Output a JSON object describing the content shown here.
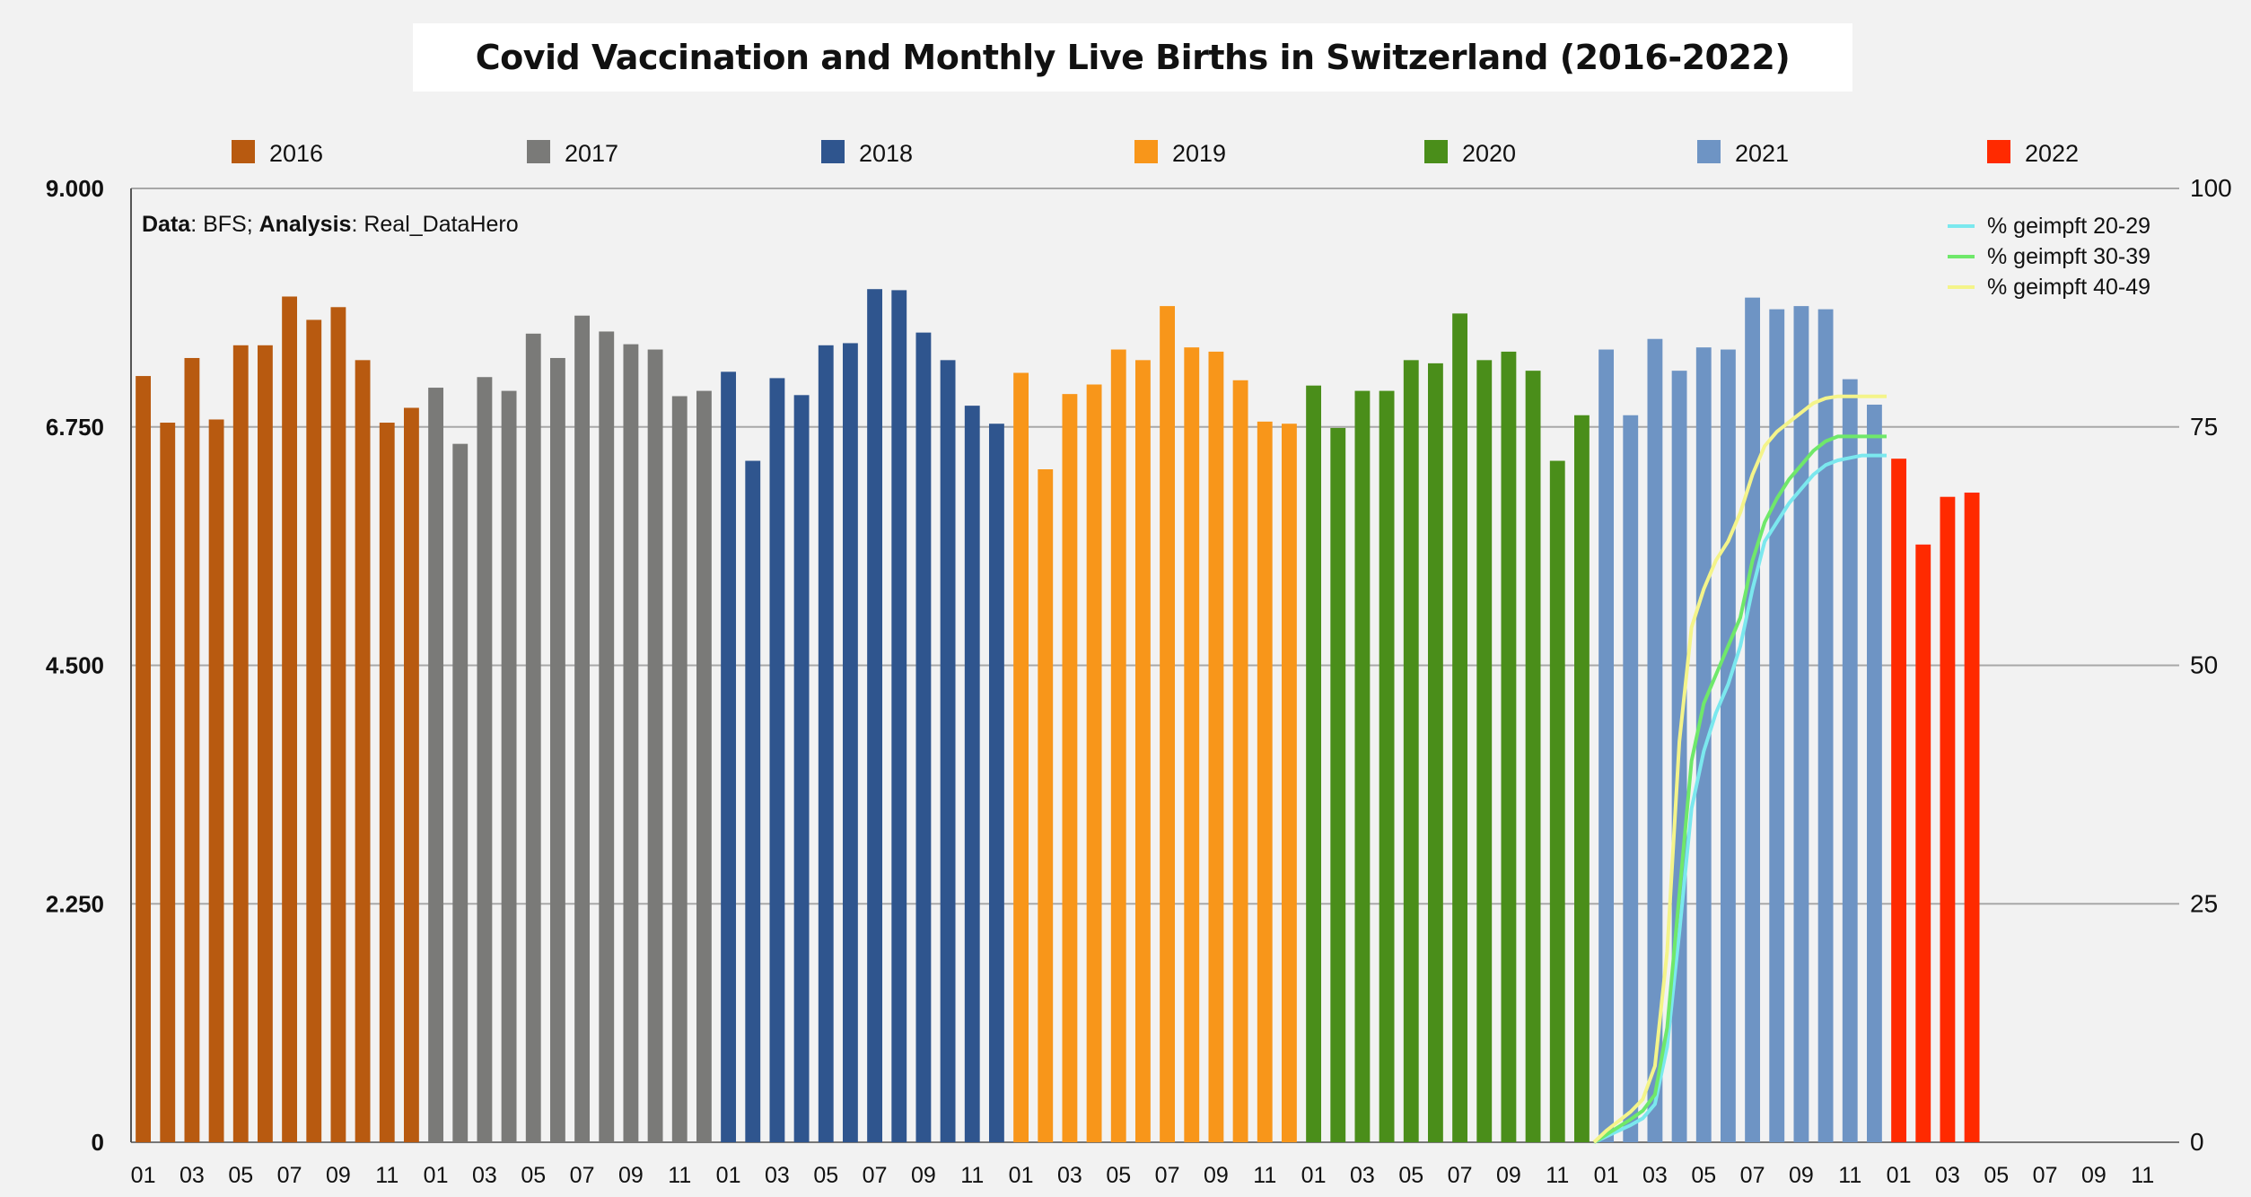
{
  "chart_data": {
    "type": "bar",
    "title": "Covid Vaccination and Monthly Live Births in Switzerland (2016-2022)",
    "source_note": {
      "data_label": "Data",
      "data_value": ": BFS; ",
      "analysis_label": "Analysis",
      "analysis_value": ": Real_DataHero"
    },
    "y_left": {
      "ylim": [
        0,
        9000
      ],
      "ticks": [
        0,
        2250,
        4500,
        6750,
        9000
      ],
      "tick_labels": [
        "0",
        "2.250",
        "4.500",
        "6.750",
        "9.000"
      ]
    },
    "y_right": {
      "ylim": [
        0,
        100
      ],
      "ticks": [
        0,
        25,
        50,
        75,
        100
      ],
      "tick_labels": [
        "0",
        "25",
        "50",
        "75",
        "100"
      ]
    },
    "grid": true,
    "x_tick_labels": [
      "01",
      "03",
      "05",
      "07",
      "09",
      "11"
    ],
    "x_axis_months": 84,
    "legend_position": "top",
    "bar_series": [
      {
        "name": "2016",
        "color": "#b85a10",
        "values": [
          7230,
          6790,
          7400,
          6820,
          7520,
          7520,
          7980,
          7760,
          7880,
          7380,
          6790,
          6930
        ]
      },
      {
        "name": "2017",
        "color": "#7a7a78",
        "values": [
          7120,
          6590,
          7220,
          7090,
          7630,
          7400,
          7800,
          7650,
          7530,
          7480,
          7040,
          7090
        ]
      },
      {
        "name": "2018",
        "color": "#2f558e",
        "values": [
          7270,
          6430,
          7210,
          7050,
          7520,
          7540,
          8050,
          8040,
          7640,
          7380,
          6950,
          6780
        ]
      },
      {
        "name": "2019",
        "color": "#f8961a",
        "values": [
          7260,
          6350,
          7060,
          7150,
          7480,
          7380,
          7890,
          7500,
          7460,
          7190,
          6800,
          6780
        ]
      },
      {
        "name": "2020",
        "color": "#4a8e1a",
        "values": [
          7140,
          6740,
          7090,
          7090,
          7380,
          7350,
          7820,
          7380,
          7460,
          7280,
          6430,
          6860
        ]
      },
      {
        "name": "2021",
        "color": "#6e94c4",
        "values": [
          7480,
          6860,
          7580,
          7280,
          7500,
          7480,
          7970,
          7860,
          7890,
          7860,
          7200,
          6960
        ]
      },
      {
        "name": "2022",
        "color": "#ff2a00",
        "values": [
          6450,
          5640,
          6090,
          6130
        ]
      }
    ],
    "line_series": [
      {
        "name": "% geimpft 20-29",
        "color": "#7be8ee",
        "points": [
          [
            12,
            0
          ],
          [
            12.5,
            0.6
          ],
          [
            13,
            1.2
          ],
          [
            13.5,
            1.8
          ],
          [
            14,
            2.5
          ],
          [
            14.5,
            4
          ],
          [
            15,
            10
          ],
          [
            15.5,
            22
          ],
          [
            16,
            35
          ],
          [
            16.5,
            41
          ],
          [
            17,
            45
          ],
          [
            17.5,
            48
          ],
          [
            18,
            52
          ],
          [
            18.5,
            58
          ],
          [
            19,
            63
          ],
          [
            19.5,
            65
          ],
          [
            20,
            67
          ],
          [
            20.5,
            68.5
          ],
          [
            21,
            70
          ],
          [
            21.5,
            71
          ],
          [
            22,
            71.5
          ],
          [
            23,
            72
          ],
          [
            24,
            72
          ]
        ]
      },
      {
        "name": "% geimpft 30-39",
        "color": "#6fe86a",
        "points": [
          [
            12,
            0
          ],
          [
            12.5,
            0.8
          ],
          [
            13,
            1.6
          ],
          [
            13.5,
            2.4
          ],
          [
            14,
            3.3
          ],
          [
            14.5,
            5
          ],
          [
            15,
            12
          ],
          [
            15.5,
            26
          ],
          [
            16,
            40
          ],
          [
            16.5,
            46
          ],
          [
            17,
            49
          ],
          [
            17.5,
            52
          ],
          [
            18,
            55
          ],
          [
            18.5,
            61
          ],
          [
            19,
            65
          ],
          [
            19.5,
            67.5
          ],
          [
            20,
            69.5
          ],
          [
            20.5,
            71
          ],
          [
            21,
            72.5
          ],
          [
            21.5,
            73.5
          ],
          [
            22,
            74
          ],
          [
            23,
            74
          ],
          [
            24,
            74
          ]
        ]
      },
      {
        "name": "% geimpft 40-49",
        "color": "#f4f48a",
        "points": [
          [
            12,
            0
          ],
          [
            12.5,
            1.2
          ],
          [
            13,
            2.2
          ],
          [
            13.5,
            3.2
          ],
          [
            14,
            4.5
          ],
          [
            14.5,
            8
          ],
          [
            15,
            20
          ],
          [
            15.5,
            42
          ],
          [
            16,
            54
          ],
          [
            16.5,
            58
          ],
          [
            17,
            61
          ],
          [
            17.5,
            63
          ],
          [
            18,
            66
          ],
          [
            18.5,
            70
          ],
          [
            19,
            73
          ],
          [
            19.5,
            74.5
          ],
          [
            20,
            75.5
          ],
          [
            20.5,
            76.5
          ],
          [
            21,
            77.5
          ],
          [
            21.5,
            78
          ],
          [
            22,
            78.2
          ],
          [
            23,
            78.2
          ],
          [
            24,
            78.2
          ]
        ]
      }
    ]
  }
}
